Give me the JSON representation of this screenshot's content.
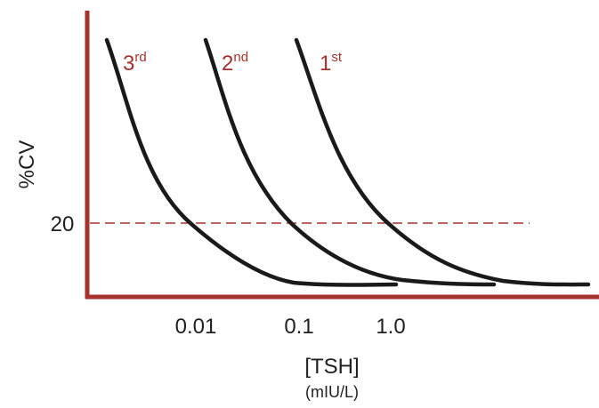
{
  "chart_data": {
    "type": "line",
    "title": "",
    "ylabel": "%CV",
    "xlabel": "[TSH]",
    "xunit": "(mIU/L)",
    "xscale": "log",
    "x_ticks": [
      {
        "value": 0.01,
        "label": "0.01"
      },
      {
        "value": 0.1,
        "label": "0.1"
      },
      {
        "value": 1.0,
        "label": "1.0"
      }
    ],
    "y_ticks": [
      {
        "value": 20,
        "label": "20"
      }
    ],
    "reference_line": {
      "y": 20,
      "style": "dashed",
      "color": "#a6312e"
    },
    "axis_color": "#a6312e",
    "curve_color": "#1a1a1a",
    "grid": false,
    "series": [
      {
        "label_main": "3",
        "label_sup": "rd"
      },
      {
        "label_main": "2",
        "label_sup": "nd"
      },
      {
        "label_main": "1",
        "label_sup": "st"
      }
    ]
  }
}
